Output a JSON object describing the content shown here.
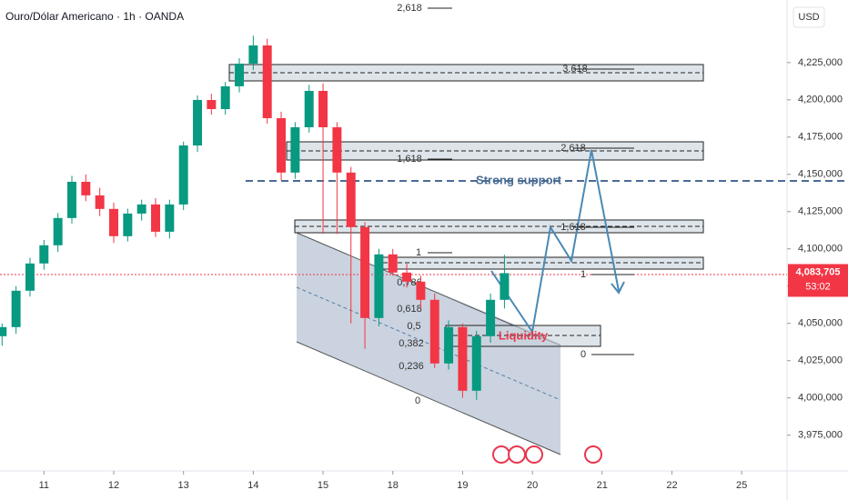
{
  "chart_data": {
    "type": "candlestick",
    "title": "Ouro/Dólar Americano · 1h · OANDA",
    "currency": "USD",
    "up_color": "#089981",
    "down_color": "#f23645",
    "x": [
      -0.6,
      -0.4,
      -0.2,
      0,
      0.2,
      0.4,
      0.6,
      0.8,
      1.0,
      1.2,
      1.4,
      1.6,
      1.8,
      2.0,
      2.2,
      2.4,
      2.6,
      2.8,
      3.0,
      3.2,
      3.4,
      3.6,
      3.8,
      4.0,
      4.2,
      4.4,
      4.6,
      4.8,
      5.0,
      5.2,
      5.4,
      5.6,
      5.8,
      6.0,
      6.2,
      6.4,
      6.6
    ],
    "open": [
      4041400,
      4047500,
      4071900,
      4090200,
      4102400,
      4120700,
      4145000,
      4135900,
      4126800,
      4108500,
      4123700,
      4129800,
      4111500,
      4129800,
      4169400,
      4199900,
      4193800,
      4209100,
      4224300,
      4236500,
      4187700,
      4151200,
      4181600,
      4206000,
      4181600,
      4151200,
      4114600,
      4053600,
      4096300,
      4084100,
      4078000,
      4065800,
      4023100,
      4047500,
      4004800,
      4041400,
      4065800
    ],
    "high": [
      4050000,
      4075000,
      4094000,
      4106000,
      4124000,
      4149000,
      4150000,
      4141000,
      4131000,
      4127000,
      4133000,
      4134000,
      4133000,
      4172000,
      4203000,
      4204000,
      4212000,
      4228000,
      4243000,
      4241000,
      4192000,
      4185000,
      4210000,
      4211000,
      4185000,
      4155000,
      4118000,
      4100000,
      4100000,
      4090000,
      4082000,
      4070000,
      4052000,
      4050000,
      4045000,
      4070000,
      4096000
    ],
    "low": [
      4035000,
      4043000,
      4068000,
      4086000,
      4098000,
      4117000,
      4132000,
      4122000,
      4104000,
      4105000,
      4119000,
      4108000,
      4107000,
      4126000,
      4165000,
      4190000,
      4190000,
      4205000,
      4220000,
      4184000,
      4146000,
      4147000,
      4178000,
      4110000,
      4110000,
      4050000,
      4033000,
      4048000,
      4082000,
      4074000,
      4060000,
      4020000,
      4019000,
      4000000,
      3998700,
      4037000,
      4060000
    ],
    "close": [
      4047500,
      4071900,
      4090200,
      4102400,
      4120700,
      4145000,
      4135900,
      4126800,
      4108500,
      4123700,
      4129800,
      4111500,
      4129800,
      4169400,
      4199900,
      4193800,
      4209100,
      4224300,
      4236500,
      4187700,
      4151200,
      4181600,
      4206000,
      4181600,
      4151200,
      4114600,
      4053600,
      4096300,
      4084100,
      4078000,
      4065800,
      4023100,
      4047500,
      4004800,
      4041400,
      4065800,
      4083705
    ],
    "xlim": [
      -0.63,
      10.65
    ],
    "xticks": [
      {
        "value": 0,
        "label": "11"
      },
      {
        "value": 1,
        "label": "12"
      },
      {
        "value": 2,
        "label": "13"
      },
      {
        "value": 3,
        "label": "14"
      },
      {
        "value": 4,
        "label": "15"
      },
      {
        "value": 5,
        "label": "18"
      },
      {
        "value": 6,
        "label": "19"
      },
      {
        "value": 7,
        "label": "20"
      },
      {
        "value": 8,
        "label": "21"
      },
      {
        "value": 9,
        "label": "22"
      },
      {
        "value": 10,
        "label": "25"
      }
    ],
    "ylim": [
      3951000,
      4267000
    ],
    "yticks": [
      {
        "value": 3975000,
        "label": "3,975,000"
      },
      {
        "value": 4000000,
        "label": "4,000,000"
      },
      {
        "value": 4025000,
        "label": "4,025,000"
      },
      {
        "value": 4050000,
        "label": "4,050,000"
      },
      {
        "value": 4075000,
        "label": "4,075,000"
      },
      {
        "value": 4100000,
        "label": "4,100,000"
      },
      {
        "value": 4125000,
        "label": "4,125,000"
      },
      {
        "value": 4150000,
        "label": "4,150,000"
      },
      {
        "value": 4175000,
        "label": "4,175,000"
      },
      {
        "value": 4200000,
        "label": "4,200,000"
      },
      {
        "value": 4225000,
        "label": "4,225,000"
      }
    ],
    "last_price": {
      "value": 4083705,
      "label": "4,083,705"
    },
    "countdown": "53:02",
    "annotations": [
      "2,618",
      "3,618",
      "2,618",
      "1,618",
      "Strong support",
      "1,618",
      "1",
      "1",
      "0,786",
      "0,618",
      "0,5",
      "0,382",
      "0,236",
      "0",
      "0",
      "Liquidity"
    ]
  }
}
